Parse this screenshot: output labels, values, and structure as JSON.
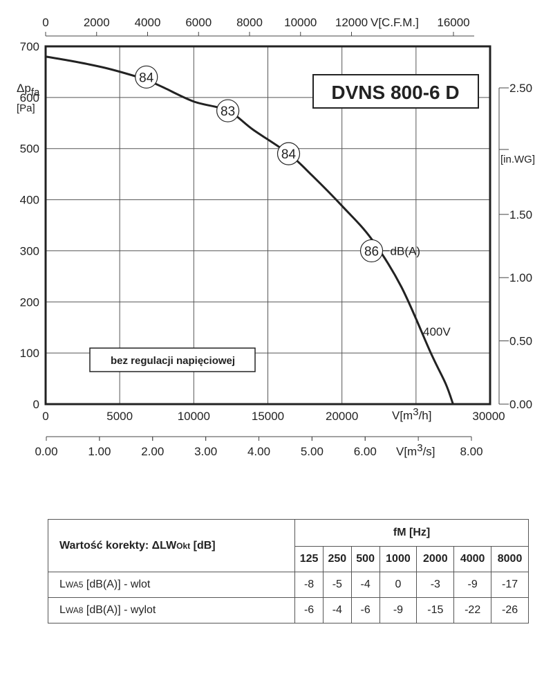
{
  "chart_data": {
    "type": "line",
    "title": "DVNS 800-6 D",
    "note": "bez regulacji napięciowej",
    "y_label": "Δp",
    "y_label_sub": "fa",
    "y_unit": "[Pa]",
    "y_ticks": [
      "0",
      "100",
      "200",
      "300",
      "400",
      "500",
      "600",
      "700"
    ],
    "ylim": [
      0,
      700
    ],
    "x_label": "V[m³/h]",
    "x_ticks": [
      "0",
      "5000",
      "10000",
      "15000",
      "20000",
      "30000"
    ],
    "xlim": [
      0,
      30000
    ],
    "x_top_label": "V[C.F.M.]",
    "x_top_ticks": [
      "0",
      "2000",
      "4000",
      "6000",
      "8000",
      "10000",
      "12000",
      "16000"
    ],
    "x_bottom2_label": "V[m³/s]",
    "x_bottom2_ticks": [
      "0.00",
      "1.00",
      "2.00",
      "3.00",
      "4.00",
      "5.00",
      "6.00",
      "8.00"
    ],
    "y_right_label": "[in.WG]",
    "y_right_ticks": [
      "2.50",
      "1.50",
      "1.00",
      "0.50",
      "0.00"
    ],
    "grid": true,
    "series": [
      {
        "name": "400V",
        "points": [
          [
            0,
            680
          ],
          [
            2000,
            670
          ],
          [
            4000,
            658
          ],
          [
            6000,
            642
          ],
          [
            7000,
            632
          ],
          [
            8000,
            619
          ],
          [
            10000,
            592
          ],
          [
            12300,
            574
          ],
          [
            14000,
            537
          ],
          [
            16400,
            490
          ],
          [
            18000,
            447
          ],
          [
            20000,
            388
          ],
          [
            22000,
            323
          ],
          [
            24000,
            230
          ],
          [
            26000,
            100
          ],
          [
            27000,
            40
          ],
          [
            27500,
            0
          ]
        ]
      }
    ],
    "annotations": [
      {
        "x": 6800,
        "y": 640,
        "text": "84"
      },
      {
        "x": 12300,
        "y": 574,
        "text": "83"
      },
      {
        "x": 16400,
        "y": 490,
        "text": "84"
      },
      {
        "x": 22000,
        "y": 300,
        "text": "86"
      }
    ],
    "annotation_unit": "dB(A)",
    "series_label": "400V"
  },
  "table": {
    "header_label": "Wartość korekty:  ΔLW",
    "header_label_sub": "Okt",
    "header_label_end": " [dB]",
    "freq_header": "fM [Hz]",
    "frequencies": [
      "125",
      "250",
      "500",
      "1000",
      "2000",
      "4000",
      "8000"
    ],
    "rows": [
      {
        "label_pre": "L",
        "label_sub": "WA5",
        "label_post": " [dB(A)] - wlot",
        "values": [
          "-8",
          "-5",
          "-4",
          "0",
          "-3",
          "-9",
          "-17"
        ]
      },
      {
        "label_pre": "L",
        "label_sub": "WA8",
        "label_post": " [dB(A)] - wylot",
        "values": [
          "-6",
          "-4",
          "-6",
          "-9",
          "-15",
          "-22",
          "-26"
        ]
      }
    ]
  }
}
